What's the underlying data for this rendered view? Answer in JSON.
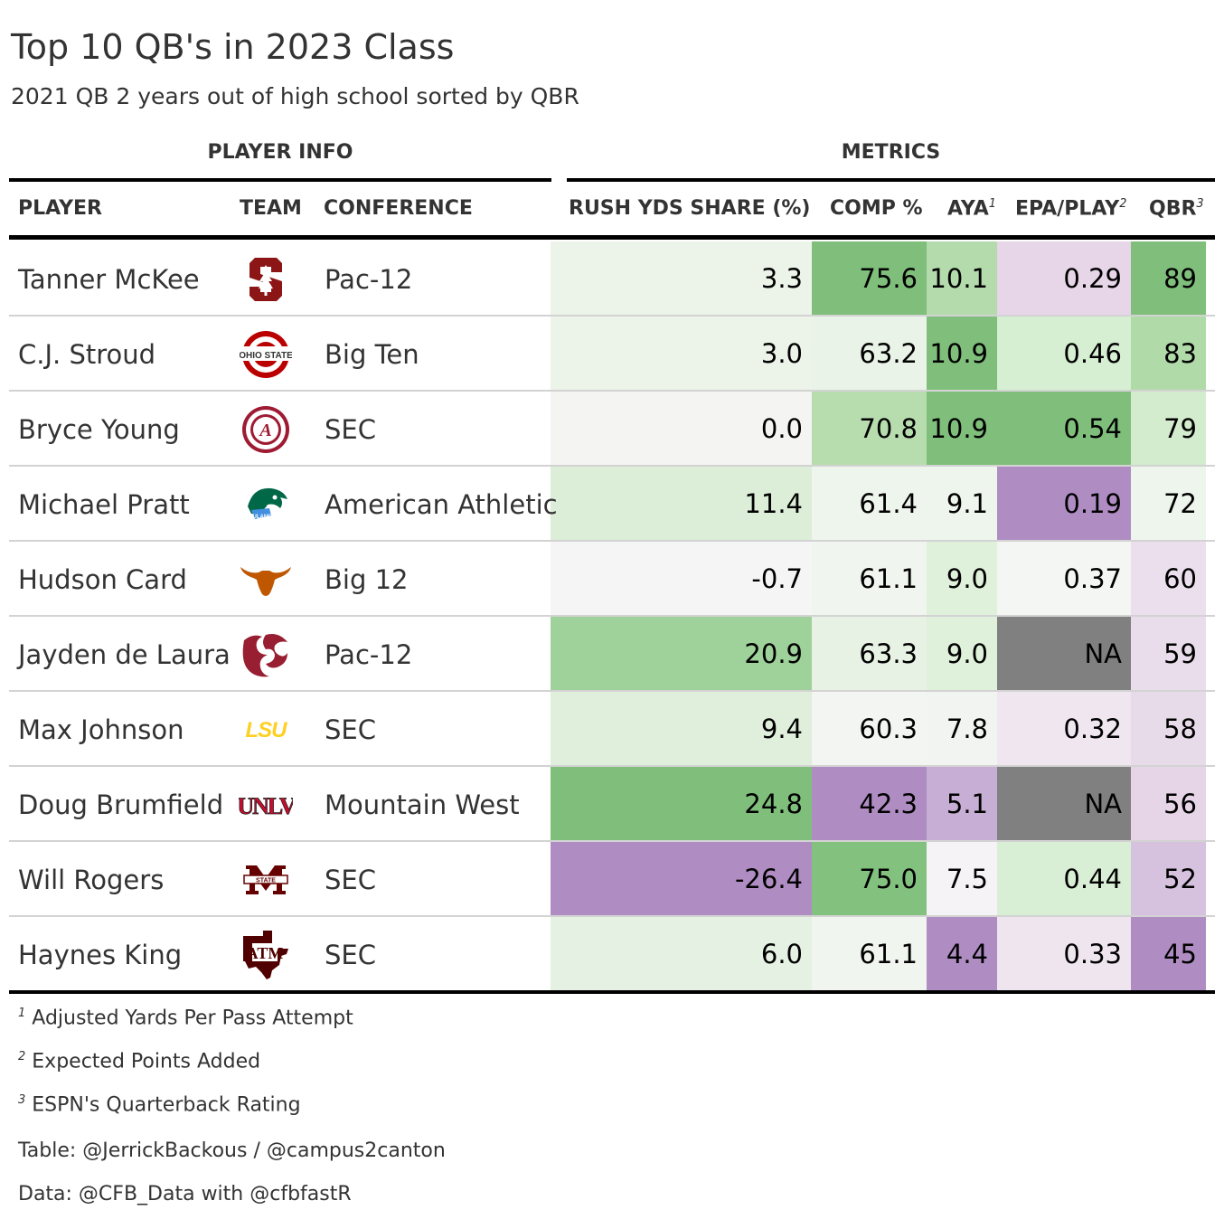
{
  "title": "Top 10 QB's in 2023 Class",
  "subtitle": "2021 QB 2 years out of high school sorted by QBR",
  "spanners": {
    "player_info": "PLAYER INFO",
    "metrics": "METRICS"
  },
  "columns": {
    "player": "PLAYER",
    "team": "TEAM",
    "conference": "CONFERENCE",
    "rush": "RUSH YDS SHARE (%)",
    "comp": "COMP %",
    "aya": "AYA",
    "aya_mark": "1",
    "epa": "EPA/PLAY",
    "epa_mark": "2",
    "qbr": "QBR",
    "qbr_mark": "3"
  },
  "chart_data": {
    "type": "table",
    "title": "Top 10 QB's in 2023 Class",
    "subtitle": "2021 QB 2 years out of high school sorted by QBR",
    "rows": [
      {
        "player": "Tanner McKee",
        "team": "Stanford",
        "conference": "Pac-12",
        "rush": "3.3",
        "comp": "75.6",
        "aya": "10.1",
        "epa": "0.29",
        "qbr": "89",
        "colors": {
          "rush": "#ecf4ea",
          "comp": "#7fbf7b",
          "aya": "#b3dbab",
          "epa": "#e7d5e8",
          "qbr": "#7fbf7b"
        }
      },
      {
        "player": "C.J. Stroud",
        "team": "Ohio State",
        "conference": "Big Ten",
        "rush": "3.0",
        "comp": "63.2",
        "aya": "10.9",
        "epa": "0.46",
        "qbr": "83",
        "colors": {
          "rush": "#ecf4ea",
          "comp": "#eaf3e8",
          "aya": "#7fbf7b",
          "epa": "#d6eed2",
          "qbr": "#b1daa9"
        }
      },
      {
        "player": "Bryce Young",
        "team": "Alabama",
        "conference": "SEC",
        "rush": "0.0",
        "comp": "70.8",
        "aya": "10.9",
        "epa": "0.54",
        "qbr": "79",
        "colors": {
          "rush": "#f4f5f3",
          "comp": "#b7ddaf",
          "aya": "#7fbf7b",
          "epa": "#7fbf7b",
          "qbr": "#d3ecce"
        }
      },
      {
        "player": "Michael Pratt",
        "team": "Tulane",
        "conference": "American Athletic",
        "rush": "11.4",
        "comp": "61.4",
        "aya": "9.1",
        "epa": "0.19",
        "qbr": "72",
        "colors": {
          "rush": "#dceed8",
          "comp": "#eef5ec",
          "aya": "#eef5ec",
          "epa": "#af8dc3",
          "qbr": "#eef5ec"
        }
      },
      {
        "player": "Hudson Card",
        "team": "Texas",
        "conference": "Big 12",
        "rush": "-0.7",
        "comp": "61.1",
        "aya": "9.0",
        "epa": "0.37",
        "qbr": "60",
        "colors": {
          "rush": "#f5f5f5",
          "comp": "#f1f5ef",
          "aya": "#dff0db",
          "epa": "#f3f6f2",
          "qbr": "#ecdfed"
        }
      },
      {
        "player": "Jayden de Laura",
        "team": "Washington State",
        "conference": "Pac-12",
        "rush": "20.9",
        "comp": "63.3",
        "aya": "9.0",
        "epa": "NA",
        "qbr": "59",
        "colors": {
          "rush": "#9ed29a",
          "comp": "#e7f2e5",
          "aya": "#dff0db",
          "epa": "#808080",
          "qbr": "#eaddeb"
        }
      },
      {
        "player": "Max Johnson",
        "team": "LSU",
        "conference": "SEC",
        "rush": "9.4",
        "comp": "60.3",
        "aya": "7.8",
        "epa": "0.32",
        "qbr": "58",
        "colors": {
          "rush": "#e0efdc",
          "comp": "#f2f5f1",
          "aya": "#f2f4f1",
          "epa": "#f0e6f0",
          "qbr": "#e8dbe9"
        }
      },
      {
        "player": "Doug Brumfield",
        "team": "UNLV",
        "conference": "Mountain West",
        "rush": "24.8",
        "comp": "42.3",
        "aya": "5.1",
        "epa": "NA",
        "qbr": "56",
        "colors": {
          "rush": "#7fbf7b",
          "comp": "#af8dc3",
          "aya": "#c6aed4",
          "epa": "#808080",
          "qbr": "#e5d5e7"
        }
      },
      {
        "player": "Will Rogers",
        "team": "Mississippi State",
        "conference": "SEC",
        "rush": "-26.4",
        "comp": "75.0",
        "aya": "7.5",
        "epa": "0.44",
        "qbr": "52",
        "colors": {
          "rush": "#af8dc3",
          "comp": "#83c17f",
          "aya": "#f5f3f5",
          "epa": "#d9efd5",
          "qbr": "#d6c1df"
        }
      },
      {
        "player": "Haynes King",
        "team": "Texas A&M",
        "conference": "SEC",
        "rush": "6.0",
        "comp": "61.1",
        "aya": "4.4",
        "epa": "0.33",
        "qbr": "45",
        "colors": {
          "rush": "#e5f1e2",
          "comp": "#f1f5ef",
          "aya": "#af8dc3",
          "epa": "#efe5ef",
          "qbr": "#af8dc3"
        }
      }
    ]
  },
  "logos": {
    "stanford": "S",
    "ohio_state": "OHIO STATE",
    "alabama": "ALABAMA CRIMSON TIDE",
    "tulane": "TULANE",
    "lsu": "LSU",
    "unlv": "UNLV",
    "mississippi_state": "STATE"
  },
  "footnotes": [
    {
      "mark": "1",
      "text": "Adjusted Yards Per Pass Attempt"
    },
    {
      "mark": "2",
      "text": "Expected Points Added"
    },
    {
      "mark": "3",
      "text": "ESPN's Quarterback Rating"
    }
  ],
  "source_notes": [
    "Table: @JerrickBackous / @campus2canton",
    "Data: @CFB_Data with @cfbfastR"
  ],
  "colors": {
    "green": "#7fbf7b",
    "purple": "#af8dc3",
    "na_gray": "#808080"
  }
}
